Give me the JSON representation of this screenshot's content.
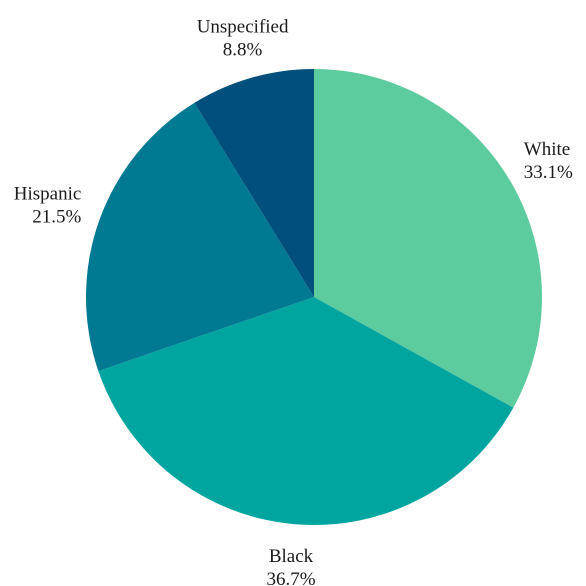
{
  "chart_data": {
    "type": "pie",
    "start_angle": "12 o'clock",
    "direction": "clockwise",
    "slices": [
      {
        "label": "White",
        "value": 33.1,
        "value_label": "33.1%",
        "color": "#5ccc9e"
      },
      {
        "label": "Black",
        "value": 36.7,
        "value_label": "36.7%",
        "color": "#00a5a0"
      },
      {
        "label": "Hispanic",
        "value": 21.5,
        "value_label": "21.5%",
        "color": "#007a92"
      },
      {
        "label": "Unspecified",
        "value": 8.8,
        "value_label": "8.8%",
        "color": "#004f7c"
      }
    ]
  }
}
